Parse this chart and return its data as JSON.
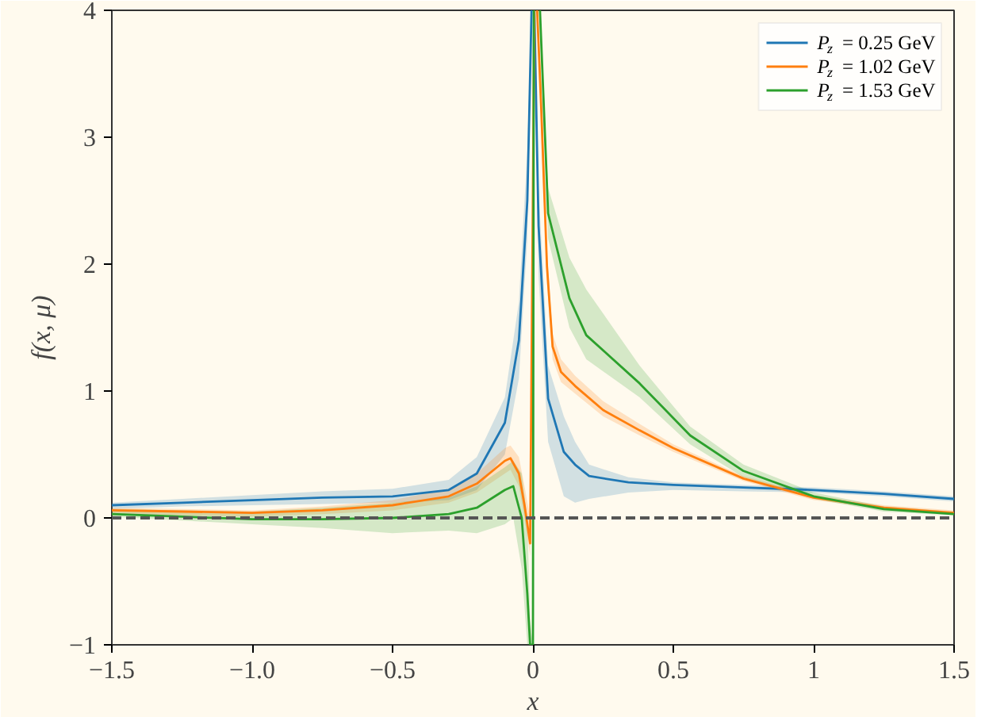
{
  "chart_data": {
    "type": "line",
    "xlabel": "x",
    "ylabel": "f(x, μ)",
    "xlim": [
      -1.5,
      1.5
    ],
    "ylim": [
      -1,
      4
    ],
    "xticks": [
      {
        "value": -1.5,
        "label": "−1.5"
      },
      {
        "value": -1.0,
        "label": "−1.0"
      },
      {
        "value": -0.5,
        "label": "−0.5"
      },
      0.0,
      0.5,
      1.0,
      1.5
    ],
    "yticks": [
      {
        "value": -1,
        "label": "−1"
      },
      0,
      1,
      2,
      3,
      4
    ],
    "grid": false,
    "legend": "top right",
    "ref_lines": [
      {
        "axis": "y",
        "value": 0,
        "label": null,
        "color": "#555555",
        "line_style": "dashed"
      }
    ],
    "series": [
      {
        "name": "P$_{z}$ = 0.25 GeV",
        "color": "#1f77b4",
        "x": [
          -1.5,
          -1.25,
          -1.0,
          -0.75,
          -0.5,
          -0.3,
          -0.2,
          -0.1,
          -0.05,
          -0.02,
          -0.005,
          0.0,
          0.005,
          0.02,
          0.054,
          0.11,
          0.15,
          0.2,
          0.34,
          0.5,
          0.75,
          1.0,
          1.25,
          1.5
        ],
        "values": [
          0.1,
          0.12,
          0.14,
          0.16,
          0.17,
          0.22,
          0.35,
          0.75,
          1.4,
          2.5,
          4.0,
          null,
          4.0,
          2.3,
          0.94,
          0.52,
          0.42,
          0.33,
          0.28,
          0.26,
          0.24,
          0.22,
          0.19,
          0.15
        ],
        "lower": [
          0.07,
          0.09,
          0.1,
          0.11,
          0.12,
          0.14,
          0.22,
          0.5,
          1.1,
          2.2,
          4.0,
          null,
          4.0,
          1.9,
          0.6,
          0.17,
          0.12,
          0.15,
          0.2,
          0.22,
          0.21,
          0.2,
          0.17,
          0.13
        ],
        "upper": [
          0.12,
          0.15,
          0.18,
          0.21,
          0.23,
          0.3,
          0.48,
          0.95,
          1.7,
          2.9,
          4.0,
          null,
          4.0,
          2.6,
          1.2,
          0.8,
          0.6,
          0.42,
          0.32,
          0.28,
          0.26,
          0.24,
          0.21,
          0.17
        ]
      },
      {
        "name": "P$_{z}$ = 1.02 GeV",
        "color": "#ff7f0e",
        "x": [
          -1.5,
          -1.25,
          -1.0,
          -0.75,
          -0.5,
          -0.3,
          -0.2,
          -0.1,
          -0.08,
          -0.05,
          -0.03,
          -0.01,
          0.005,
          0.01,
          0.015,
          0.03,
          0.05,
          0.07,
          0.1,
          0.15,
          0.25,
          0.38,
          0.5,
          0.75,
          1.0,
          1.25,
          1.5
        ],
        "values": [
          0.06,
          0.05,
          0.04,
          0.06,
          0.1,
          0.17,
          0.27,
          0.45,
          0.47,
          0.35,
          0.1,
          -0.2,
          4.0,
          null,
          4.0,
          3.2,
          1.98,
          1.35,
          1.15,
          1.04,
          0.85,
          0.69,
          0.55,
          0.31,
          0.16,
          0.08,
          0.04
        ],
        "lower": [
          0.02,
          0.02,
          0.01,
          0.03,
          0.06,
          0.12,
          0.2,
          0.35,
          0.38,
          0.25,
          0.0,
          -0.3,
          4.0,
          null,
          4.0,
          3.0,
          1.85,
          1.25,
          1.07,
          0.98,
          0.8,
          0.65,
          0.52,
          0.29,
          0.14,
          0.07,
          0.03
        ],
        "upper": [
          0.08,
          0.07,
          0.06,
          0.09,
          0.14,
          0.23,
          0.35,
          0.55,
          0.57,
          0.48,
          0.25,
          0.0,
          4.0,
          null,
          4.0,
          3.4,
          2.1,
          1.45,
          1.25,
          1.12,
          0.92,
          0.74,
          0.58,
          0.33,
          0.18,
          0.1,
          0.06
        ]
      },
      {
        "name": "P$_{z}$ = 1.53 GeV",
        "color": "#2ca02c",
        "x": [
          -1.5,
          -1.25,
          -1.0,
          -0.75,
          -0.5,
          -0.3,
          -0.2,
          -0.1,
          -0.07,
          -0.04,
          -0.02,
          -0.01,
          0.0,
          0.003,
          0.01,
          0.025,
          0.054,
          0.13,
          0.19,
          0.38,
          0.56,
          0.75,
          1.0,
          1.25,
          1.5
        ],
        "values": [
          0.03,
          0.01,
          -0.01,
          -0.01,
          0.0,
          0.03,
          0.08,
          0.22,
          0.25,
          0.0,
          -0.6,
          -1.0,
          -1.0,
          4.0,
          null,
          4.0,
          2.4,
          1.73,
          1.44,
          1.06,
          0.65,
          0.37,
          0.17,
          0.07,
          0.03
        ],
        "lower": [
          0.01,
          -0.02,
          -0.05,
          -0.08,
          -0.12,
          -0.1,
          -0.12,
          -0.05,
          0.0,
          -0.4,
          -1.0,
          -1.0,
          -1.0,
          4.0,
          null,
          4.0,
          2.2,
          1.5,
          1.25,
          0.95,
          0.58,
          0.32,
          0.15,
          0.05,
          0.02
        ],
        "upper": [
          0.07,
          0.06,
          0.05,
          0.08,
          0.12,
          0.16,
          0.25,
          0.4,
          0.45,
          0.35,
          0.0,
          -0.8,
          -1.0,
          4.0,
          null,
          4.0,
          2.6,
          2.05,
          1.8,
          1.2,
          0.72,
          0.42,
          0.2,
          0.09,
          0.05
        ]
      }
    ]
  }
}
